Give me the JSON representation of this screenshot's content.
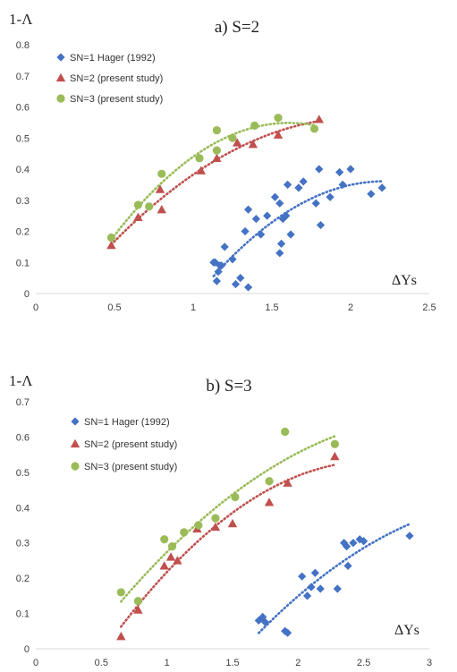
{
  "chart_data": [
    {
      "type": "scatter",
      "title": "a) S=2",
      "ylabel": "1-Λ",
      "xlabel": "ΔYs",
      "xlim": [
        0,
        2.5
      ],
      "ylim": [
        0,
        0.8
      ],
      "xticks": [
        0,
        0.5,
        1,
        1.5,
        2,
        2.5
      ],
      "xtick_labels": [
        "0",
        "0.5",
        "1",
        "1.5",
        "2",
        "2.5"
      ],
      "yticks": [
        0,
        0.1,
        0.2,
        0.3,
        0.4,
        0.5,
        0.6,
        0.7,
        0.8
      ],
      "ytick_labels": [
        "0",
        "0.1",
        "0.2",
        "0.3",
        "0.4",
        "0.5",
        "0.6",
        "0.7",
        "0.8"
      ],
      "grid": false,
      "legend_position": "top-left",
      "series": [
        {
          "name": "SN=1 Hager (1992)",
          "marker": "diamond",
          "color": "#4472C4",
          "x": [
            1.13,
            1.16,
            1.18,
            1.15,
            1.2,
            1.14,
            1.17,
            1.25,
            1.27,
            1.3,
            1.33,
            1.35,
            1.4,
            1.43,
            1.35,
            1.47,
            1.52,
            1.55,
            1.57,
            1.59,
            1.6,
            1.62,
            1.67,
            1.7,
            1.78,
            1.8,
            1.81,
            1.87,
            1.93,
            1.95,
            2.0,
            2.13,
            2.2,
            1.56,
            1.55
          ],
          "y": [
            0.1,
            0.07,
            0.09,
            0.04,
            0.15,
            0.1,
            0.09,
            0.11,
            0.03,
            0.05,
            0.2,
            0.27,
            0.24,
            0.19,
            0.02,
            0.25,
            0.31,
            0.29,
            0.24,
            0.25,
            0.35,
            0.19,
            0.34,
            0.36,
            0.29,
            0.4,
            0.22,
            0.31,
            0.39,
            0.35,
            0.4,
            0.32,
            0.34,
            0.16,
            0.13
          ]
        },
        {
          "name": "SN=2 (present study)",
          "marker": "triangle",
          "color": "#C0504D",
          "x": [
            0.48,
            0.65,
            0.79,
            0.8,
            1.05,
            1.15,
            1.28,
            1.38,
            1.54,
            1.8
          ],
          "y": [
            0.155,
            0.245,
            0.335,
            0.27,
            0.395,
            0.435,
            0.485,
            0.48,
            0.51,
            0.56
          ]
        },
        {
          "name": "SN=3 (present study)",
          "marker": "circle",
          "color": "#9BBB59",
          "x": [
            0.48,
            0.65,
            0.72,
            0.8,
            1.04,
            1.15,
            1.15,
            1.25,
            1.39,
            1.54,
            1.77
          ],
          "y": [
            0.18,
            0.285,
            0.28,
            0.385,
            0.435,
            0.46,
            0.525,
            0.5,
            0.54,
            0.565,
            0.53
          ]
        }
      ]
    },
    {
      "type": "scatter",
      "title": "b) S=3",
      "ylabel": "1-Λ",
      "xlabel": "ΔYs",
      "xlim": [
        0,
        3
      ],
      "ylim": [
        0,
        0.7
      ],
      "xticks": [
        0,
        0.5,
        1,
        1.5,
        2,
        2.5,
        3
      ],
      "xtick_labels": [
        "0",
        "0.5",
        "1",
        "1.5",
        "2",
        "2.5",
        "3"
      ],
      "yticks": [
        0,
        0.1,
        0.2,
        0.3,
        0.4,
        0.5,
        0.6,
        0.7
      ],
      "ytick_labels": [
        "0",
        "0.1",
        "0.2",
        "0.3",
        "0.4",
        "0.5",
        "0.6",
        "0.7"
      ],
      "grid": false,
      "legend_position": "top-left",
      "series": [
        {
          "name": "SN=1 Hager (1992)",
          "marker": "diamond",
          "color": "#4472C4",
          "x": [
            1.7,
            1.73,
            1.75,
            1.9,
            1.92,
            2.03,
            2.07,
            2.1,
            2.13,
            2.17,
            2.3,
            2.35,
            2.37,
            2.38,
            2.42,
            2.47,
            2.5,
            2.85
          ],
          "y": [
            0.08,
            0.09,
            0.075,
            0.05,
            0.045,
            0.205,
            0.15,
            0.175,
            0.215,
            0.17,
            0.17,
            0.3,
            0.29,
            0.235,
            0.3,
            0.31,
            0.305,
            0.32
          ]
        },
        {
          "name": "SN=2 (present study)",
          "marker": "triangle",
          "color": "#C0504D",
          "x": [
            0.65,
            0.78,
            0.98,
            1.03,
            1.08,
            1.23,
            1.37,
            1.5,
            1.78,
            1.92,
            2.28
          ],
          "y": [
            0.035,
            0.11,
            0.235,
            0.26,
            0.25,
            0.34,
            0.345,
            0.355,
            0.415,
            0.47,
            0.545
          ]
        },
        {
          "name": "SN=3 (present study)",
          "marker": "circle",
          "color": "#9BBB59",
          "x": [
            0.65,
            0.78,
            0.98,
            1.04,
            1.13,
            1.24,
            1.37,
            1.52,
            1.78,
            1.9,
            2.28
          ],
          "y": [
            0.16,
            0.135,
            0.31,
            0.29,
            0.33,
            0.35,
            0.37,
            0.43,
            0.475,
            0.615,
            0.58
          ]
        }
      ]
    }
  ]
}
